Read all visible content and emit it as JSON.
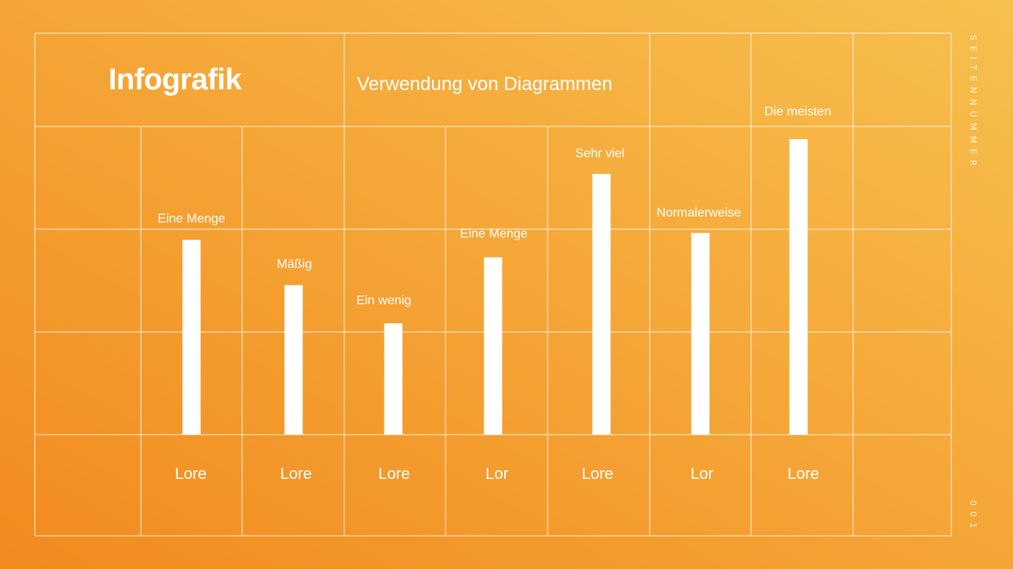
{
  "slide": {
    "title": "Infografik",
    "subtitle": "Verwendung von Diagrammen",
    "page_label": "SEITENNUMMER",
    "page_number": "001"
  },
  "colors": {
    "background_start": "#F28A1E",
    "background_end": "#F7C04E",
    "grid": "#FFFFFF",
    "bar": "#FFFFFF"
  },
  "chart_data": {
    "type": "bar",
    "categories": [
      "Lore",
      "Lore",
      "Lore",
      "Lor",
      "Lore",
      "Lor",
      "Lore"
    ],
    "values": [
      56,
      43,
      32,
      51,
      75,
      58,
      85
    ],
    "data_labels": [
      "Eine Menge",
      "Mäßig",
      "Ein wenig",
      "Eine Menge",
      "Sehr viel",
      "Normalerweise",
      "Die meisten"
    ],
    "title": "Verwendung von Diagrammen",
    "xlabel": "",
    "ylabel": "",
    "ylim": [
      0,
      100
    ],
    "grid": true,
    "legend": "none"
  }
}
